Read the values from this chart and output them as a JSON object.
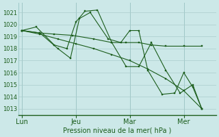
{
  "background_color": "#cce8e8",
  "grid_color": "#aacccc",
  "line_color": "#1a5c1a",
  "xlabel": "Pression niveau de la mer( hPa )",
  "ylim": [
    1012.5,
    1021.8
  ],
  "yticks": [
    1013,
    1014,
    1015,
    1016,
    1017,
    1018,
    1019,
    1020,
    1021
  ],
  "xtick_labels": [
    "Lun",
    "Jeu",
    "Mar",
    "Mer"
  ],
  "xtick_positions": [
    0,
    30,
    60,
    90
  ],
  "xlim": [
    -2,
    108
  ],
  "series": [
    {
      "x": [
        0,
        10,
        20,
        30,
        40,
        50,
        60,
        70,
        80,
        90,
        100
      ],
      "y": [
        1019.5,
        1019.2,
        1018.8,
        1018.4,
        1018.0,
        1017.5,
        1017.0,
        1016.3,
        1015.5,
        1014.5,
        1013.0
      ]
    },
    {
      "x": [
        0,
        8,
        18,
        25,
        30,
        35,
        42,
        50,
        58,
        65,
        72,
        80,
        88,
        95,
        100
      ],
      "y": [
        1019.5,
        1019.8,
        1018.3,
        1018.0,
        1020.2,
        1021.1,
        1021.2,
        1018.5,
        1016.5,
        1016.5,
        1018.5,
        1016.2,
        1014.3,
        1015.0,
        1013.0
      ]
    },
    {
      "x": [
        0,
        10,
        20,
        27,
        32,
        38,
        48,
        55,
        60,
        65,
        70,
        78,
        85,
        90,
        95,
        100
      ],
      "y": [
        1019.5,
        1019.3,
        1018.0,
        1017.2,
        1020.5,
        1021.0,
        1018.8,
        1018.5,
        1019.5,
        1019.5,
        1016.2,
        1014.2,
        1014.3,
        1016.0,
        1014.8,
        1013.0
      ]
    },
    {
      "x": [
        0,
        10,
        18,
        28,
        40,
        50,
        58,
        65,
        72,
        80,
        90,
        100
      ],
      "y": [
        1019.5,
        1019.3,
        1019.2,
        1019.1,
        1018.8,
        1018.5,
        1018.5,
        1018.5,
        1018.3,
        1018.2,
        1018.2,
        1018.2
      ]
    }
  ]
}
